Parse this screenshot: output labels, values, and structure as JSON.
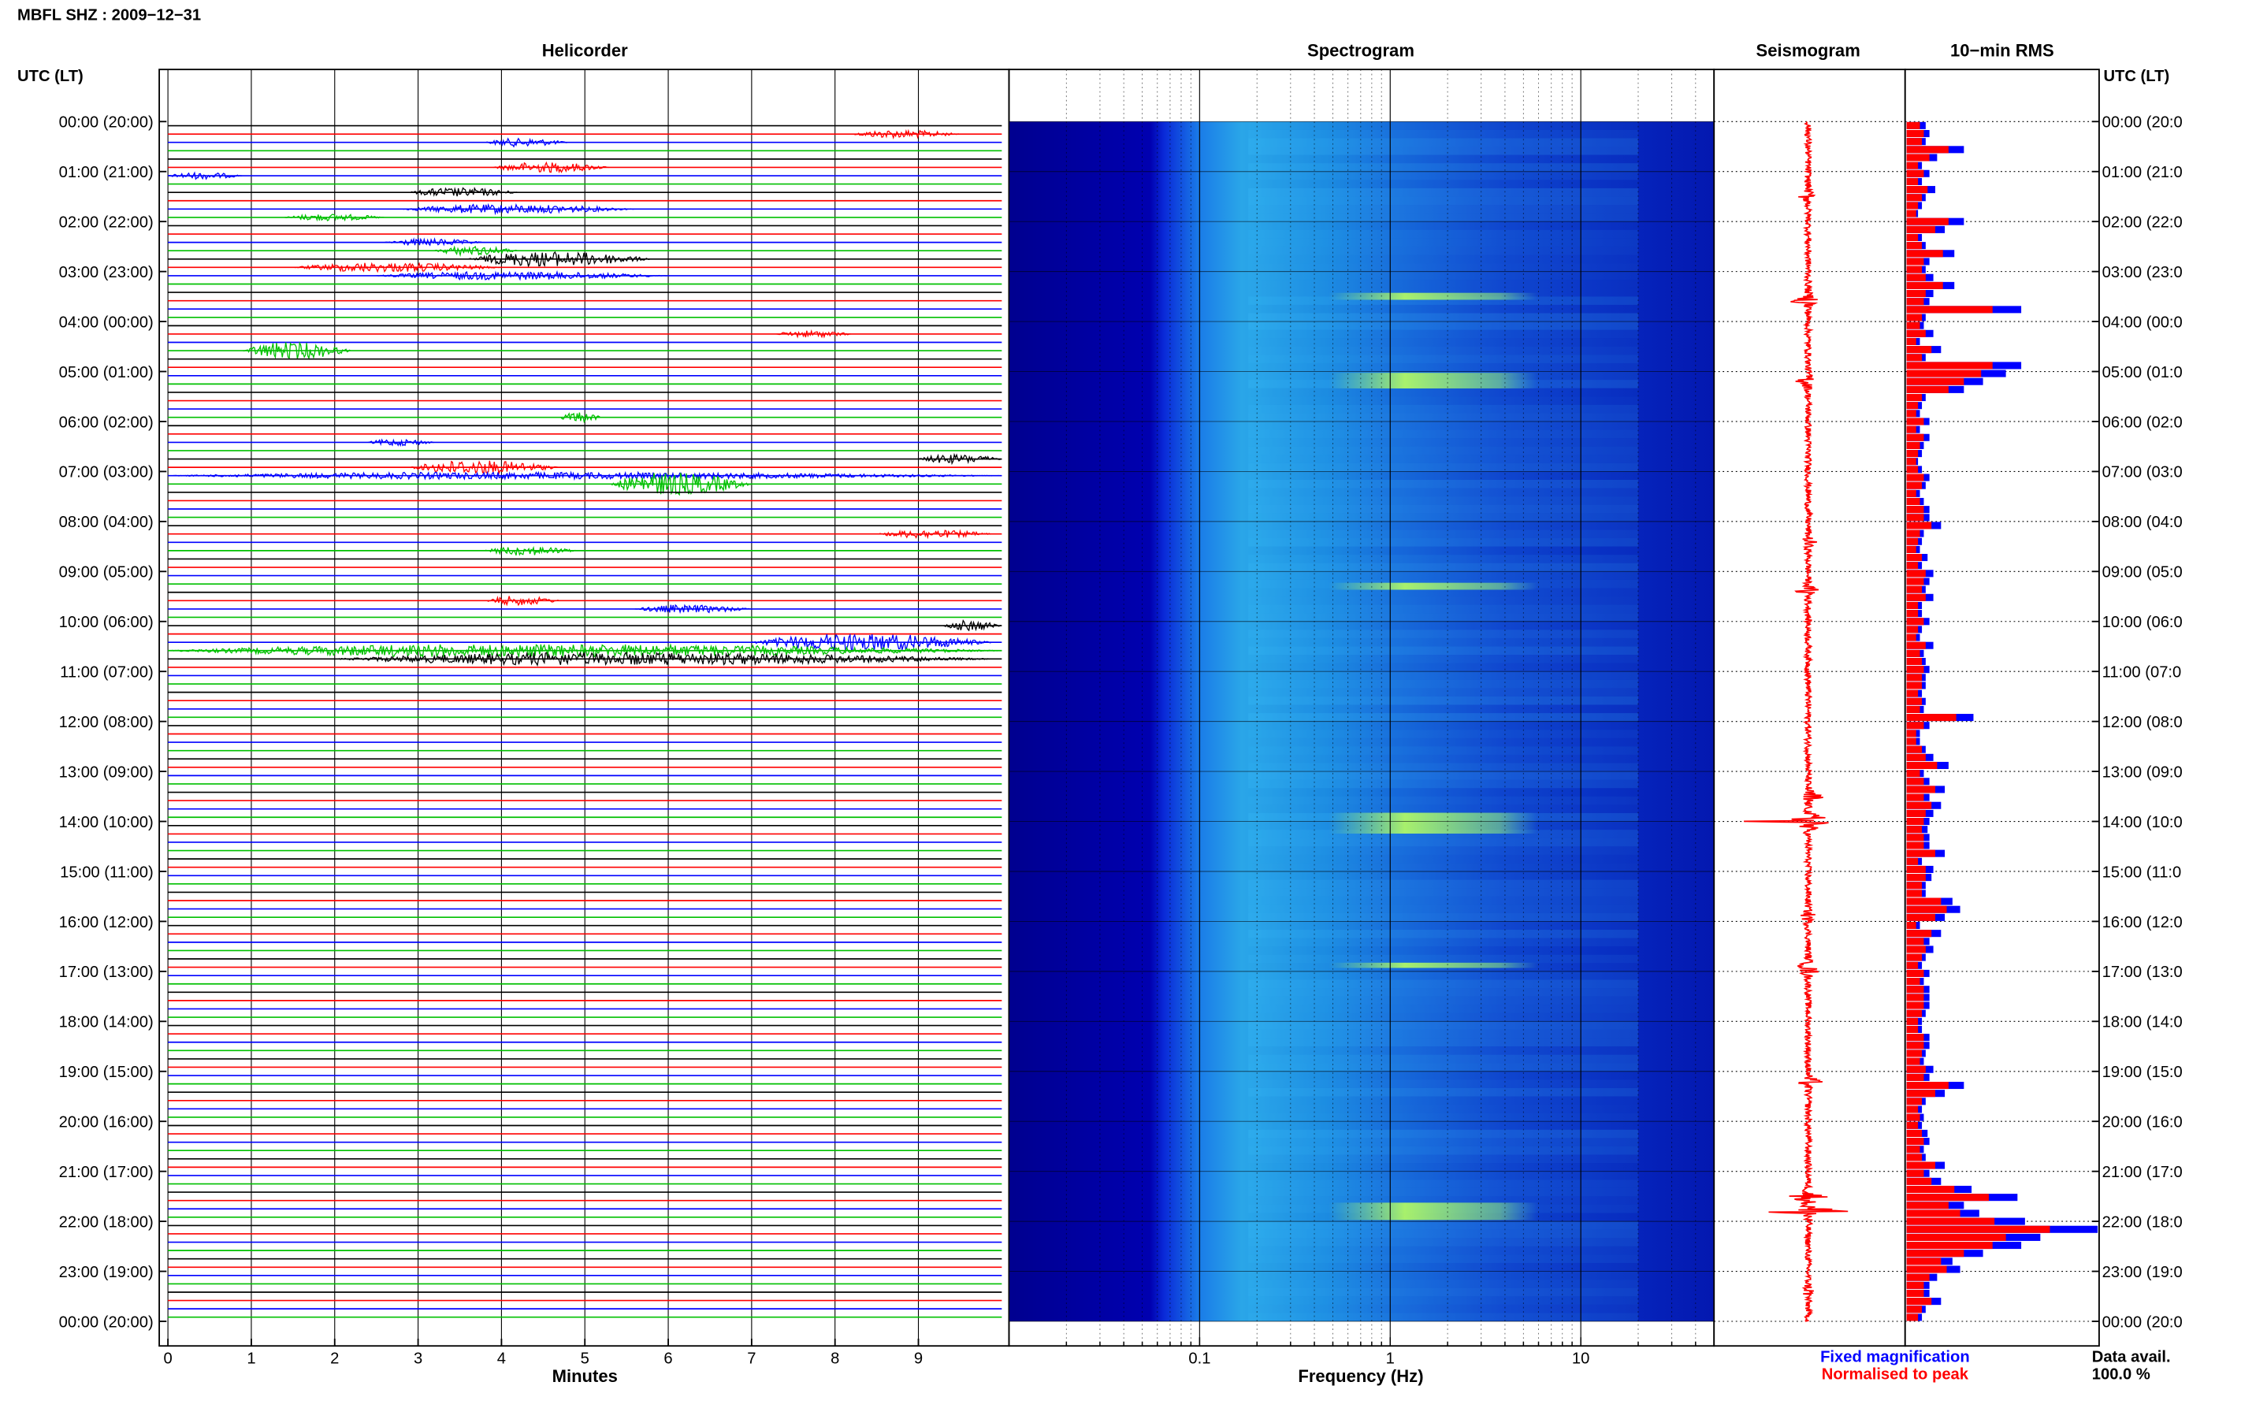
{
  "header": {
    "title": "MBFL SHZ : 2009−12−31"
  },
  "panels": {
    "helicorder": "Helicorder",
    "spectrogram": "Spectrogram",
    "seismogram": "Seismogram",
    "rms": "10−min RMS"
  },
  "axes": {
    "left_axis_label": "UTC (LT)",
    "right_axis_label": "UTC (LT)",
    "x_label_helicorder": "Minutes",
    "x_label_spectrogram": "Frequency (Hz)"
  },
  "legend": {
    "fixed": "Fixed magnification",
    "normalised": "Normalised to peak",
    "fixed_color": "#0000ff",
    "normalised_color": "#ff0000"
  },
  "data_avail": {
    "label": "Data avail.",
    "value": "100.0 %"
  },
  "colors": {
    "trace_cycle": [
      "#000000",
      "#ff0000",
      "#0000ff",
      "#00cc00"
    ],
    "seismogram": "#ff0000"
  },
  "chart_data": [
    {
      "type": "line",
      "title": "Helicorder",
      "xlabel": "Minutes",
      "x_ticks": [
        "0",
        "1",
        "2",
        "3",
        "4",
        "5",
        "6",
        "7",
        "8",
        "9"
      ],
      "xlim": [
        0,
        10
      ],
      "left_ticks": [
        "00:00 (20:00)",
        "01:00 (21:00)",
        "02:00 (22:00)",
        "03:00 (23:00)",
        "04:00 (00:00)",
        "05:00 (01:00)",
        "06:00 (02:00)",
        "07:00 (03:00)",
        "08:00 (04:00)",
        "09:00 (05:00)",
        "10:00 (06:00)",
        "11:00 (07:00)",
        "12:00 (08:00)",
        "13:00 (09:00)",
        "14:00 (10:00)",
        "15:00 (11:00)",
        "16:00 (12:00)",
        "17:00 (13:00)",
        "18:00 (14:00)",
        "19:00 (15:00)",
        "20:00 (16:00)",
        "21:00 (17:00)",
        "22:00 (18:00)",
        "23:00 (19:00)",
        "00:00 (20:00)"
      ],
      "right_ticks": [
        "00:00 (20:0",
        "01:00 (21:0",
        "02:00 (22:0",
        "03:00 (23:0",
        "04:00 (00:0",
        "05:00 (01:0",
        "06:00 (02:0",
        "07:00 (03:0",
        "08:00 (04:0",
        "09:00 (05:0",
        "10:00 (06:0",
        "11:00 (07:0",
        "12:00 (08:0",
        "13:00 (09:0",
        "14:00 (10:0",
        "15:00 (11:0",
        "16:00 (12:0",
        "17:00 (13:0",
        "18:00 (14:0",
        "19:00 (15:0",
        "20:00 (16:0",
        "21:00 (17:0",
        "22:00 (18:0",
        "23:00 (19:0",
        "00:00 (20:0"
      ],
      "rows_per_hour": 6,
      "trace_color_cycle": [
        "black",
        "red",
        "blue",
        "green"
      ],
      "events": [
        {
          "row": 1,
          "start_min": 8.2,
          "end_min": 9.5,
          "amp": 0.35
        },
        {
          "row": 2,
          "start_min": 3.8,
          "end_min": 4.8,
          "amp": 0.35
        },
        {
          "row": 5,
          "start_min": 3.9,
          "end_min": 5.3,
          "amp": 0.45
        },
        {
          "row": 6,
          "start_min": 0.0,
          "end_min": 0.9,
          "amp": 0.3
        },
        {
          "row": 8,
          "start_min": 2.9,
          "end_min": 4.2,
          "amp": 0.4
        },
        {
          "row": 10,
          "start_min": 2.8,
          "end_min": 5.6,
          "amp": 0.4
        },
        {
          "row": 11,
          "start_min": 1.4,
          "end_min": 2.6,
          "amp": 0.3
        },
        {
          "row": 14,
          "start_min": 2.6,
          "end_min": 3.8,
          "amp": 0.3
        },
        {
          "row": 15,
          "start_min": 3.2,
          "end_min": 4.2,
          "amp": 0.4
        },
        {
          "row": 16,
          "start_min": 3.6,
          "end_min": 5.8,
          "amp": 0.65
        },
        {
          "row": 17,
          "start_min": 1.5,
          "end_min": 4.0,
          "amp": 0.4
        },
        {
          "row": 18,
          "start_min": 2.5,
          "end_min": 6.0,
          "amp": 0.35
        },
        {
          "row": 25,
          "start_min": 7.3,
          "end_min": 8.2,
          "amp": 0.3
        },
        {
          "row": 27,
          "start_min": 0.9,
          "end_min": 2.2,
          "amp": 0.75
        },
        {
          "row": 35,
          "start_min": 4.7,
          "end_min": 5.2,
          "amp": 0.45
        },
        {
          "row": 38,
          "start_min": 2.4,
          "end_min": 3.2,
          "amp": 0.3
        },
        {
          "row": 40,
          "start_min": 9.0,
          "end_min": 10.0,
          "amp": 0.4
        },
        {
          "row": 41,
          "start_min": 2.9,
          "end_min": 4.7,
          "amp": 0.6
        },
        {
          "row": 42,
          "start_min": 0.0,
          "end_min": 10.0,
          "amp": 0.3
        },
        {
          "row": 43,
          "start_min": 5.3,
          "end_min": 7.0,
          "amp": 1.0
        },
        {
          "row": 49,
          "start_min": 8.5,
          "end_min": 9.9,
          "amp": 0.35
        },
        {
          "row": 51,
          "start_min": 3.8,
          "end_min": 4.9,
          "amp": 0.4
        },
        {
          "row": 57,
          "start_min": 3.8,
          "end_min": 4.7,
          "amp": 0.4
        },
        {
          "row": 58,
          "start_min": 5.6,
          "end_min": 7.0,
          "amp": 0.35
        },
        {
          "row": 60,
          "start_min": 9.3,
          "end_min": 10.0,
          "amp": 0.45
        },
        {
          "row": 62,
          "start_min": 7.0,
          "end_min": 9.9,
          "amp": 0.75
        },
        {
          "row": 63,
          "start_min": 0.0,
          "end_min": 10.0,
          "amp": 0.55
        },
        {
          "row": 64,
          "start_min": 2.0,
          "end_min": 9.9,
          "amp": 0.55
        }
      ]
    },
    {
      "type": "heatmap",
      "title": "Spectrogram",
      "xlabel": "Frequency (Hz)",
      "x_scale": "log",
      "x_ticks": [
        "0.1",
        "1",
        "10"
      ],
      "xlim": [
        0.01,
        50
      ]
    },
    {
      "type": "line",
      "title": "Seismogram",
      "color": "red"
    },
    {
      "type": "bar",
      "title": "10−min RMS",
      "series": [
        {
          "name": "Fixed magnification",
          "color": "blue"
        },
        {
          "name": "Normalised to peak",
          "color": "red"
        }
      ],
      "values_fixed": [
        0.1,
        0.12,
        0.1,
        0.3,
        0.16,
        0.08,
        0.12,
        0.08,
        0.15,
        0.1,
        0.08,
        0.06,
        0.3,
        0.2,
        0.08,
        0.1,
        0.25,
        0.12,
        0.1,
        0.14,
        0.25,
        0.14,
        0.12,
        0.6,
        0.1,
        0.09,
        0.14,
        0.07,
        0.18,
        0.1,
        0.6,
        0.52,
        0.4,
        0.3,
        0.1,
        0.08,
        0.07,
        0.12,
        0.07,
        0.12,
        0.09,
        0.08,
        0.06,
        0.08,
        0.12,
        0.1,
        0.07,
        0.09,
        0.12,
        0.12,
        0.18,
        0.09,
        0.08,
        0.07,
        0.11,
        0.08,
        0.14,
        0.12,
        0.1,
        0.14,
        0.08,
        0.08,
        0.12,
        0.08,
        0.07,
        0.14,
        0.09,
        0.1,
        0.12,
        0.1,
        0.1,
        0.08,
        0.1,
        0.09,
        0.35,
        0.12,
        0.07,
        0.07,
        0.1,
        0.14,
        0.22,
        0.09,
        0.12,
        0.2,
        0.12,
        0.18,
        0.14,
        0.12,
        0.11,
        0.12,
        0.12,
        0.2,
        0.08,
        0.14,
        0.13,
        0.1,
        0.1,
        0.24,
        0.28,
        0.2,
        0.07,
        0.18,
        0.12,
        0.14,
        0.1,
        0.08,
        0.12,
        0.09,
        0.12,
        0.12,
        0.12,
        0.1,
        0.08,
        0.08,
        0.12,
        0.12,
        0.1,
        0.09,
        0.14,
        0.12,
        0.3,
        0.2,
        0.1,
        0.08,
        0.09,
        0.08,
        0.11,
        0.12,
        0.09,
        0.1,
        0.2,
        0.12,
        0.18,
        0.34,
        0.58,
        0.3,
        0.38,
        0.62,
        1.0,
        0.7,
        0.6,
        0.4,
        0.24,
        0.28,
        0.16,
        0.12,
        0.12,
        0.18,
        0.1,
        0.08
      ],
      "values_normalised": [
        0.07,
        0.09,
        0.08,
        0.22,
        0.12,
        0.06,
        0.09,
        0.06,
        0.11,
        0.08,
        0.06,
        0.05,
        0.22,
        0.15,
        0.06,
        0.08,
        0.19,
        0.09,
        0.08,
        0.1,
        0.19,
        0.1,
        0.09,
        0.45,
        0.08,
        0.07,
        0.1,
        0.05,
        0.13,
        0.08,
        0.45,
        0.39,
        0.3,
        0.22,
        0.08,
        0.06,
        0.05,
        0.09,
        0.05,
        0.09,
        0.07,
        0.06,
        0.05,
        0.06,
        0.09,
        0.08,
        0.05,
        0.07,
        0.09,
        0.09,
        0.13,
        0.07,
        0.06,
        0.05,
        0.08,
        0.06,
        0.1,
        0.09,
        0.08,
        0.1,
        0.06,
        0.06,
        0.09,
        0.06,
        0.05,
        0.1,
        0.07,
        0.08,
        0.09,
        0.08,
        0.08,
        0.06,
        0.08,
        0.07,
        0.26,
        0.09,
        0.05,
        0.05,
        0.08,
        0.1,
        0.16,
        0.07,
        0.09,
        0.15,
        0.09,
        0.13,
        0.1,
        0.09,
        0.08,
        0.09,
        0.09,
        0.15,
        0.06,
        0.1,
        0.1,
        0.08,
        0.08,
        0.18,
        0.21,
        0.15,
        0.05,
        0.13,
        0.09,
        0.1,
        0.08,
        0.06,
        0.09,
        0.07,
        0.09,
        0.09,
        0.09,
        0.08,
        0.06,
        0.06,
        0.09,
        0.09,
        0.08,
        0.07,
        0.1,
        0.09,
        0.22,
        0.15,
        0.08,
        0.06,
        0.07,
        0.06,
        0.08,
        0.09,
        0.07,
        0.08,
        0.15,
        0.09,
        0.13,
        0.25,
        0.43,
        0.22,
        0.28,
        0.46,
        0.75,
        0.52,
        0.45,
        0.3,
        0.18,
        0.21,
        0.12,
        0.09,
        0.09,
        0.13,
        0.08,
        0.06
      ]
    }
  ]
}
